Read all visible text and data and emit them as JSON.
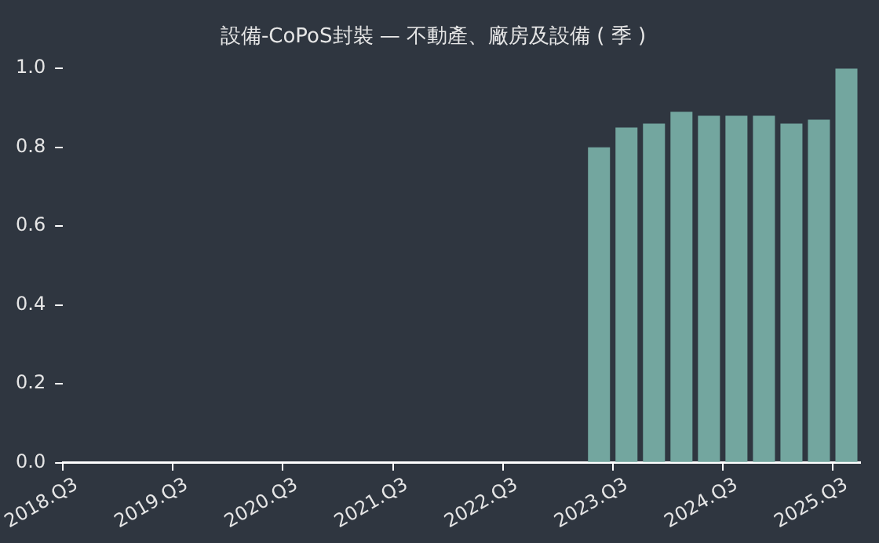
{
  "chart_data": {
    "type": "bar",
    "title": "設備-CoPoS封裝 — 不動產、廠房及設備 ( 季 )",
    "categories": [
      "2018.Q3",
      null,
      null,
      null,
      "2019.Q3",
      null,
      null,
      null,
      "2020.Q3",
      null,
      null,
      null,
      "2021.Q3",
      null,
      null,
      null,
      "2022.Q3",
      null,
      null,
      null,
      "2023.Q3",
      null,
      null,
      null,
      "2024.Q3",
      null,
      null,
      null,
      "2025.Q3"
    ],
    "values": [
      null,
      null,
      null,
      null,
      null,
      null,
      null,
      null,
      null,
      null,
      null,
      null,
      null,
      null,
      null,
      null,
      null,
      null,
      null,
      0.8,
      0.85,
      0.86,
      0.89,
      0.88,
      0.88,
      0.88,
      0.86,
      0.87,
      1.0
    ],
    "color": "#73a69f",
    "ylim": [
      0,
      1
    ],
    "yticks": [
      {
        "value": 0,
        "label": "0.0"
      },
      {
        "value": 0.2,
        "label": "0.2"
      },
      {
        "value": 0.4,
        "label": "0.4"
      },
      {
        "value": 0.6,
        "label": "0.6"
      },
      {
        "value": 0.8,
        "label": "0.8"
      },
      {
        "value": 1,
        "label": "1.0"
      }
    ],
    "grid": false,
    "legend": false
  }
}
